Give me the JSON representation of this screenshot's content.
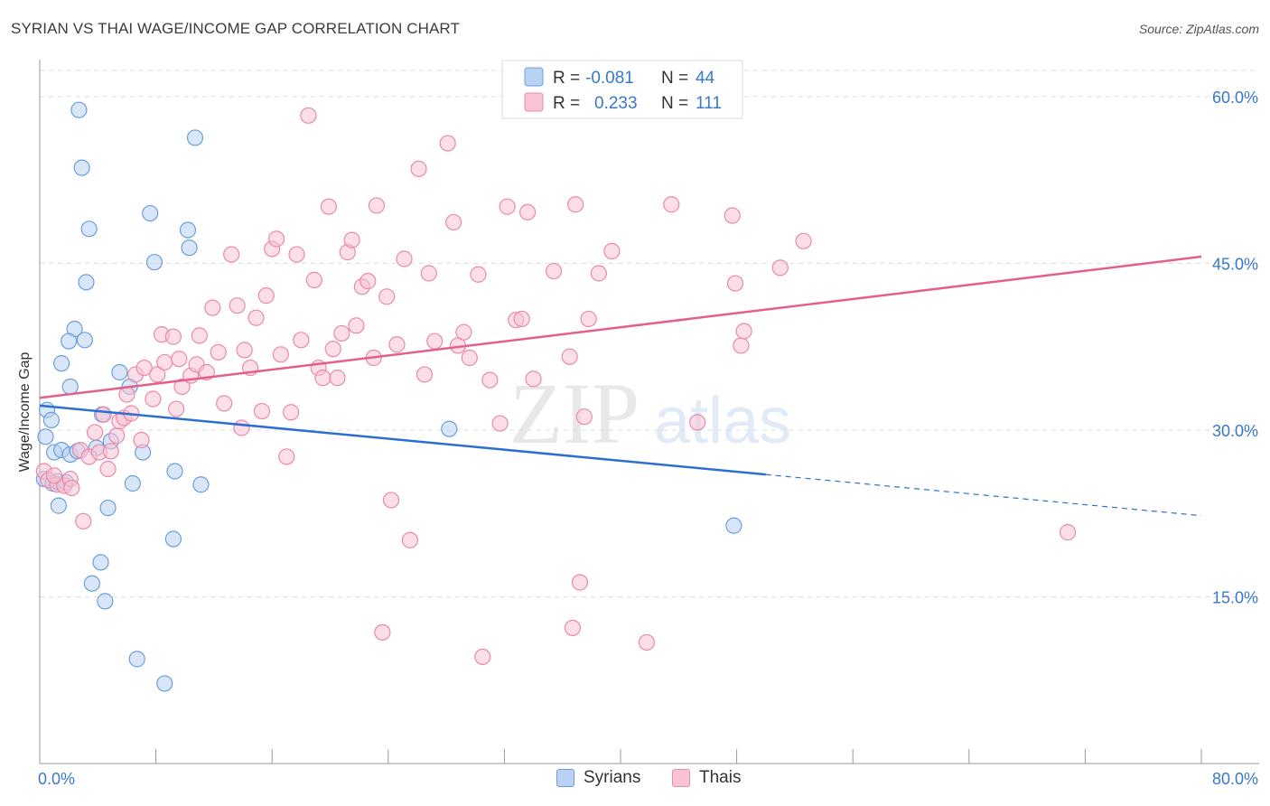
{
  "header": {
    "title": "SYRIAN VS THAI WAGE/INCOME GAP CORRELATION CHART",
    "source": "Source: ZipAtlas.com"
  },
  "watermark": {
    "zip": "ZIP",
    "atlas": "atlas"
  },
  "colors": {
    "syrian_fill": "#b9d2f3",
    "syrian_stroke": "#6b9fdc",
    "syrian_line": "#2d6fd0",
    "thai_fill": "#f8c3d4",
    "thai_stroke": "#e98aaa",
    "thai_line": "#e2608b",
    "tick_label": "#3a78c9",
    "grid": "#dddddd"
  },
  "stats": {
    "rows": [
      {
        "r_label": "R =",
        "r_value": "-0.081",
        "n_label": "N =",
        "n_value": "44"
      },
      {
        "r_label": "R =",
        "r_value": "0.233",
        "n_label": "N =",
        "n_value": "111"
      }
    ]
  },
  "chart_data": {
    "type": "scatter",
    "title": "SYRIAN VS THAI WAGE/INCOME GAP CORRELATION CHART",
    "xlabel": "",
    "ylabel": "Wage/Income Gap",
    "xlim": [
      0,
      80
    ],
    "ylim": [
      0,
      63
    ],
    "x_tick_labels": [
      "0.0%",
      "80.0%"
    ],
    "y_ticks": [
      15,
      30,
      45,
      60
    ],
    "y_tick_labels": [
      "15.0%",
      "30.0%",
      "45.0%",
      "60.0%"
    ],
    "grid": true,
    "legend_position": "bottom-center",
    "series": [
      {
        "name": "Syrians",
        "r": -0.081,
        "n": 44,
        "trend": {
          "x_start": 0,
          "y_start": 32.2,
          "x_solid_end": 50,
          "y_solid_end": 26.0,
          "x_end": 80,
          "y_end": 22.3
        },
        "points": [
          [
            0.3,
            25.6
          ],
          [
            0.4,
            29.4
          ],
          [
            0.5,
            31.8
          ],
          [
            0.8,
            30.9
          ],
          [
            0.9,
            25.2
          ],
          [
            1.0,
            28.0
          ],
          [
            1.2,
            25.4
          ],
          [
            1.3,
            23.2
          ],
          [
            1.5,
            28.2
          ],
          [
            1.8,
            25.3
          ],
          [
            2.1,
            33.9
          ],
          [
            2.1,
            27.8
          ],
          [
            2.4,
            39.1
          ],
          [
            2.6,
            28.1
          ],
          [
            2.7,
            58.8
          ],
          [
            2.9,
            53.6
          ],
          [
            3.1,
            38.1
          ],
          [
            3.2,
            43.3
          ],
          [
            3.4,
            48.1
          ],
          [
            3.6,
            16.2
          ],
          [
            3.9,
            28.4
          ],
          [
            4.2,
            18.1
          ],
          [
            4.3,
            31.4
          ],
          [
            4.5,
            14.6
          ],
          [
            4.7,
            23.0
          ],
          [
            4.9,
            29.0
          ],
          [
            5.5,
            35.2
          ],
          [
            6.2,
            33.9
          ],
          [
            6.4,
            25.2
          ],
          [
            6.7,
            9.4
          ],
          [
            7.1,
            28.0
          ],
          [
            7.6,
            49.5
          ],
          [
            7.9,
            45.1
          ],
          [
            8.6,
            7.2
          ],
          [
            9.2,
            20.2
          ],
          [
            9.3,
            26.3
          ],
          [
            10.2,
            48.0
          ],
          [
            10.3,
            46.4
          ],
          [
            10.7,
            56.3
          ],
          [
            11.1,
            25.1
          ],
          [
            28.2,
            30.1
          ],
          [
            47.8,
            21.4
          ],
          [
            2.0,
            38.0
          ],
          [
            1.5,
            36.0
          ]
        ]
      },
      {
        "name": "Thais",
        "r": 0.233,
        "n": 111,
        "trend": {
          "x_start": 0,
          "y_start": 32.9,
          "x_end": 80,
          "y_end": 45.6
        },
        "points": [
          [
            0.3,
            26.3
          ],
          [
            0.6,
            25.5
          ],
          [
            1.2,
            25.1
          ],
          [
            1.7,
            25.0
          ],
          [
            2.1,
            25.6
          ],
          [
            2.8,
            28.2
          ],
          [
            3.0,
            21.8
          ],
          [
            3.4,
            27.6
          ],
          [
            3.8,
            29.8
          ],
          [
            4.1,
            28.0
          ],
          [
            4.4,
            31.4
          ],
          [
            4.7,
            26.5
          ],
          [
            4.9,
            28.1
          ],
          [
            5.3,
            29.5
          ],
          [
            5.5,
            30.8
          ],
          [
            5.8,
            31.1
          ],
          [
            6.0,
            33.2
          ],
          [
            6.3,
            31.5
          ],
          [
            6.6,
            35.0
          ],
          [
            7.0,
            29.1
          ],
          [
            7.2,
            35.6
          ],
          [
            7.8,
            32.8
          ],
          [
            8.1,
            35.0
          ],
          [
            8.4,
            38.6
          ],
          [
            8.6,
            36.1
          ],
          [
            9.2,
            38.4
          ],
          [
            9.4,
            31.9
          ],
          [
            9.6,
            36.4
          ],
          [
            9.8,
            33.9
          ],
          [
            10.4,
            34.9
          ],
          [
            10.8,
            35.9
          ],
          [
            11.0,
            38.5
          ],
          [
            11.5,
            35.2
          ],
          [
            11.9,
            41.0
          ],
          [
            12.3,
            37.0
          ],
          [
            12.7,
            32.4
          ],
          [
            13.2,
            45.8
          ],
          [
            13.6,
            41.2
          ],
          [
            13.9,
            30.2
          ],
          [
            14.1,
            37.2
          ],
          [
            14.5,
            35.6
          ],
          [
            14.9,
            40.1
          ],
          [
            15.3,
            31.7
          ],
          [
            15.6,
            42.1
          ],
          [
            16.0,
            46.3
          ],
          [
            16.3,
            47.2
          ],
          [
            16.6,
            36.8
          ],
          [
            17.0,
            27.6
          ],
          [
            17.3,
            31.6
          ],
          [
            17.7,
            45.8
          ],
          [
            18.0,
            38.1
          ],
          [
            18.5,
            58.3
          ],
          [
            18.9,
            43.5
          ],
          [
            19.2,
            35.6
          ],
          [
            19.5,
            34.7
          ],
          [
            19.9,
            50.1
          ],
          [
            20.2,
            37.3
          ],
          [
            20.5,
            34.7
          ],
          [
            20.8,
            38.7
          ],
          [
            21.2,
            46.0
          ],
          [
            21.5,
            47.1
          ],
          [
            21.8,
            39.4
          ],
          [
            22.2,
            42.9
          ],
          [
            22.6,
            43.4
          ],
          [
            23.0,
            36.5
          ],
          [
            23.2,
            50.2
          ],
          [
            23.6,
            11.8
          ],
          [
            23.9,
            42.0
          ],
          [
            24.2,
            23.7
          ],
          [
            24.6,
            37.7
          ],
          [
            25.1,
            45.4
          ],
          [
            25.5,
            20.1
          ],
          [
            26.1,
            53.5
          ],
          [
            26.5,
            35.0
          ],
          [
            26.8,
            44.1
          ],
          [
            27.2,
            38.0
          ],
          [
            28.1,
            55.8
          ],
          [
            28.5,
            48.7
          ],
          [
            28.8,
            37.6
          ],
          [
            29.2,
            38.8
          ],
          [
            29.6,
            36.5
          ],
          [
            30.2,
            44.0
          ],
          [
            30.5,
            9.6
          ],
          [
            31.0,
            34.5
          ],
          [
            31.7,
            30.6
          ],
          [
            32.2,
            50.1
          ],
          [
            32.8,
            39.9
          ],
          [
            33.2,
            40.0
          ],
          [
            33.6,
            49.6
          ],
          [
            34.0,
            34.6
          ],
          [
            35.4,
            44.3
          ],
          [
            36.5,
            36.6
          ],
          [
            36.7,
            12.2
          ],
          [
            36.9,
            50.3
          ],
          [
            37.2,
            16.3
          ],
          [
            37.5,
            31.2
          ],
          [
            37.8,
            40.0
          ],
          [
            38.5,
            44.1
          ],
          [
            39.4,
            46.1
          ],
          [
            41.8,
            10.9
          ],
          [
            43.5,
            50.3
          ],
          [
            45.3,
            30.7
          ],
          [
            47.7,
            49.3
          ],
          [
            47.9,
            43.2
          ],
          [
            48.3,
            37.6
          ],
          [
            48.5,
            38.9
          ],
          [
            51.0,
            44.6
          ],
          [
            52.6,
            47.0
          ],
          [
            70.8,
            20.8
          ],
          [
            2.2,
            24.8
          ],
          [
            1.0,
            25.9
          ]
        ]
      }
    ]
  },
  "legend": {
    "items": [
      "Syrians",
      "Thais"
    ]
  }
}
